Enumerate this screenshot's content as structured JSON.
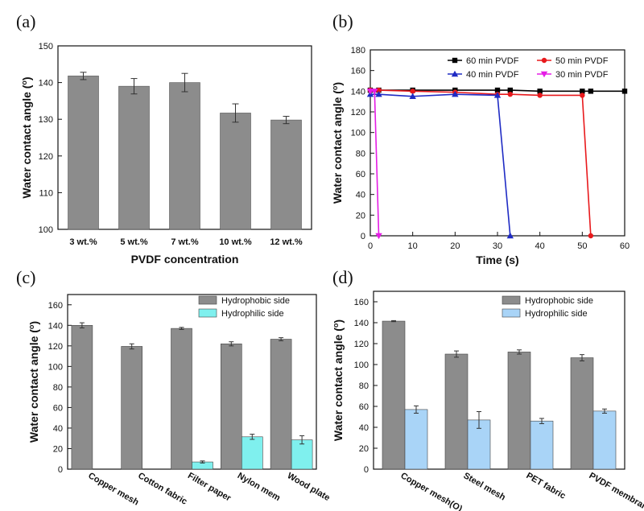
{
  "chart_data": [
    {
      "panel": "(a)",
      "type": "bar",
      "xlabel": "PVDF concentration",
      "ylabel": "Water contact angle (",
      "ylabel_sup": "o",
      "ylabel_end": ")",
      "categories": [
        "3 wt.%",
        "5 wt.%",
        "7 wt.%",
        "10 wt.%",
        "12 wt.%"
      ],
      "values": [
        141.8,
        139.0,
        140.0,
        131.7,
        129.8
      ],
      "errors": [
        1.0,
        2.1,
        2.5,
        2.5,
        1.0
      ],
      "ylim": [
        100,
        150
      ],
      "yticks": [
        100,
        110,
        120,
        130,
        140,
        150
      ],
      "bar_color": "#8c8c8c"
    },
    {
      "panel": "(b)",
      "type": "line",
      "xlabel": "Time (s)",
      "ylabel": "Water contact angle (",
      "ylabel_sup": "o",
      "ylabel_end": ")",
      "xlim": [
        0,
        60
      ],
      "ylim": [
        0,
        180
      ],
      "xticks": [
        0,
        10,
        20,
        30,
        40,
        50,
        60
      ],
      "yticks": [
        0,
        20,
        40,
        60,
        80,
        100,
        120,
        140,
        160,
        180
      ],
      "series": [
        {
          "name": "60 min PVDF",
          "color": "#000000",
          "marker": "square",
          "x": [
            0,
            2,
            10,
            20,
            30,
            33,
            40,
            50,
            52,
            60
          ],
          "y": [
            141,
            141,
            141,
            141,
            141,
            141,
            140,
            140,
            140,
            140
          ]
        },
        {
          "name": "50 min PVDF",
          "color": "#e8191c",
          "marker": "circle",
          "x": [
            0,
            2,
            10,
            20,
            30,
            33,
            40,
            50,
            52
          ],
          "y": [
            141,
            141,
            140,
            139,
            137,
            137,
            136,
            136,
            0
          ]
        },
        {
          "name": "40 min PVDF",
          "color": "#1f2bc4",
          "marker": "triangle-up",
          "x": [
            0,
            2,
            10,
            20,
            30,
            33
          ],
          "y": [
            137,
            137,
            135,
            137,
            136,
            0
          ]
        },
        {
          "name": "30 min PVDF",
          "color": "#e51de5",
          "marker": "triangle-down",
          "x": [
            0,
            1,
            2
          ],
          "y": [
            140,
            140,
            0
          ]
        }
      ]
    },
    {
      "panel": "(c)",
      "type": "bar",
      "xlabel": "",
      "ylabel": "Water contact angle (",
      "ylabel_sup": "o",
      "ylabel_end": ")",
      "categories": [
        "Copper mesh",
        "Cotton fabric",
        "Filter paper",
        "Nylon mem",
        "Wood plate"
      ],
      "ylim": [
        0,
        170
      ],
      "yticks": [
        0,
        20,
        40,
        60,
        80,
        100,
        120,
        140,
        160
      ],
      "series": [
        {
          "name": "Hydrophobic side",
          "color": "#8c8c8c",
          "values": [
            140,
            119.5,
            137,
            122,
            126.5
          ],
          "errors": [
            2.5,
            2.5,
            1.0,
            2.0,
            1.5
          ]
        },
        {
          "name": "Hydrophilic side",
          "color": "#7ff0ee",
          "values": [
            0,
            0,
            7,
            31.5,
            28.5
          ],
          "errors": [
            0,
            0,
            1.0,
            2.5,
            4.0
          ]
        }
      ]
    },
    {
      "panel": "(d)",
      "type": "bar",
      "xlabel": "",
      "ylabel": "Water contact angle (",
      "ylabel_sup": "o",
      "ylabel_end": ")",
      "categories": [
        "Copper mesh(O)",
        "Steel mesh",
        "PET fabric",
        "PVDF membrane"
      ],
      "ylim": [
        0,
        170
      ],
      "yticks": [
        0,
        20,
        40,
        60,
        80,
        100,
        120,
        140,
        160
      ],
      "series": [
        {
          "name": "Hydrophobic side",
          "color": "#8c8c8c",
          "values": [
            141.5,
            110,
            112,
            106.5
          ],
          "errors": [
            0.5,
            3.0,
            2.0,
            3.0
          ]
        },
        {
          "name": "Hydrophilic side",
          "color": "#a9d4f7",
          "values": [
            57,
            47,
            46,
            55.5
          ],
          "errors": [
            3.5,
            8.0,
            2.5,
            2.0
          ]
        }
      ]
    }
  ]
}
